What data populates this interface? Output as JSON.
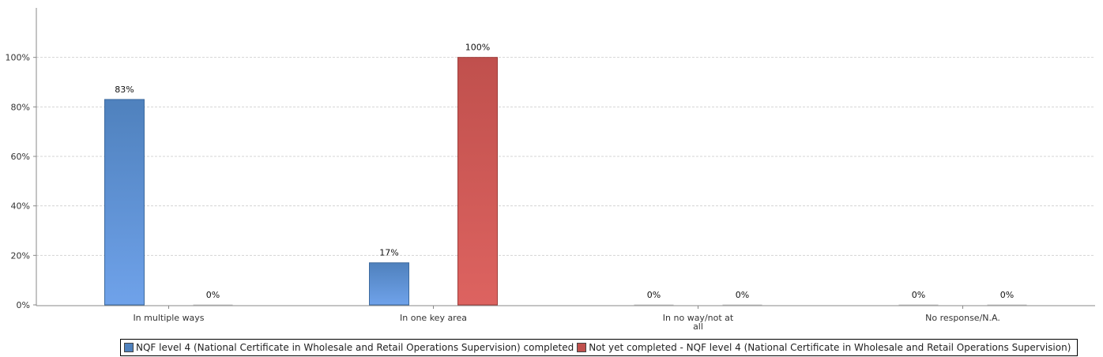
{
  "chart_data": {
    "type": "bar",
    "categories": [
      "In multiple ways",
      "In one key area",
      "In no way/not at all",
      "No response/N.A."
    ],
    "series": [
      {
        "name": "NQF level 4 (National Certificate in Wholesale and Retail Operations Supervision) completed",
        "values": [
          83,
          17,
          0,
          0
        ],
        "labels": [
          "83%",
          "17%",
          "0%",
          "0%"
        ],
        "color": "#4f81bd"
      },
      {
        "name": "Not yet completed - NQF level 4 (National Certificate in Wholesale and Retail Operations Supervision)",
        "values": [
          0,
          100,
          0,
          0
        ],
        "labels": [
          "0%",
          "100%",
          "0%",
          "0%"
        ],
        "color": "#c0504d"
      }
    ],
    "y_ticks": [
      "0%",
      "20%",
      "40%",
      "60%",
      "80%",
      "100%"
    ],
    "ylim": [
      0,
      120
    ],
    "grid": true,
    "legend_position": "bottom"
  }
}
